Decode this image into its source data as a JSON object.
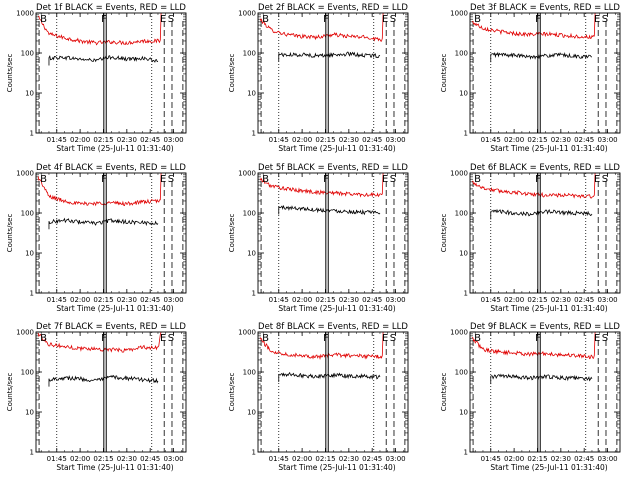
{
  "page": {
    "background": "#ffffff"
  },
  "colors": {
    "axis": "#000000",
    "events": "#000000",
    "lld": "#e00000"
  },
  "chart_data": [
    {
      "type": "line",
      "title": "Det 1f BLACK = Events, RED = LLD",
      "xlabel": "Start Time (25-Jul-11 01:31:40)",
      "ylabel": "Counts/sec",
      "y_scale": "log",
      "ylim": [
        1,
        1000
      ],
      "y_ticks": [
        "1",
        "10",
        "100",
        "1000"
      ],
      "x_ticks": [
        "01:45",
        "02:00",
        "02:15",
        "02:30",
        "02:45",
        "03:00"
      ],
      "x_axis_range": [
        "01:31:40",
        "03:08"
      ],
      "markers": [
        {
          "label": "B",
          "time": "01:33"
        },
        {
          "label": "F",
          "time": "02:16"
        },
        {
          "label": "E",
          "time": "02:54"
        },
        {
          "label": "S",
          "time": "02:59"
        }
      ],
      "series": [
        {
          "color": "red",
          "x": [
            "01:33",
            "01:40",
            "01:50",
            "02:00",
            "02:10",
            "02:20",
            "02:30",
            "02:40",
            "02:50",
            "02:52"
          ],
          "values": [
            800,
            300,
            240,
            200,
            180,
            190,
            180,
            200,
            200,
            1000
          ]
        },
        {
          "color": "black",
          "x": [
            "01:40",
            "01:50",
            "02:00",
            "02:10",
            "02:20",
            "02:30",
            "02:40",
            "02:50"
          ],
          "values": [
            75,
            78,
            70,
            65,
            80,
            70,
            75,
            62
          ]
        }
      ]
    },
    {
      "type": "line",
      "title": "Det 2f BLACK = Events, RED = LLD",
      "xlabel": "Start Time (25-Jul-11 01:31:40)",
      "ylabel": "Counts/sec",
      "y_scale": "log",
      "ylim": [
        1,
        1000
      ],
      "y_ticks": [
        "1",
        "10",
        "100",
        "1000"
      ],
      "x_ticks": [
        "01:45",
        "02:00",
        "02:15",
        "02:30",
        "02:45",
        "03:00"
      ],
      "x_axis_range": [
        "01:31:40",
        "03:08"
      ],
      "markers": [
        {
          "label": "B",
          "time": "01:33"
        },
        {
          "label": "F",
          "time": "02:16"
        },
        {
          "label": "E",
          "time": "02:54"
        },
        {
          "label": "S",
          "time": "02:59"
        }
      ],
      "series": [
        {
          "color": "red",
          "x": [
            "01:33",
            "01:40",
            "01:50",
            "02:00",
            "02:10",
            "02:20",
            "02:30",
            "02:40",
            "02:50",
            "02:52"
          ],
          "values": [
            700,
            380,
            290,
            260,
            250,
            290,
            260,
            250,
            220,
            1000
          ]
        },
        {
          "color": "black",
          "x": [
            "01:45",
            "01:50",
            "02:00",
            "02:10",
            "02:20",
            "02:30",
            "02:40",
            "02:50"
          ],
          "values": [
            95,
            88,
            92,
            85,
            90,
            95,
            88,
            85
          ]
        }
      ]
    },
    {
      "type": "line",
      "title": "Det 3f BLACK = Events, RED = LLD",
      "xlabel": "Start Time (25-Jul-11 01:31:40)",
      "ylabel": "Counts/sec",
      "y_scale": "log",
      "ylim": [
        1,
        1000
      ],
      "y_ticks": [
        "1",
        "10",
        "100",
        "1000"
      ],
      "x_ticks": [
        "01:45",
        "02:00",
        "02:15",
        "02:30",
        "02:45",
        "03:00"
      ],
      "x_axis_range": [
        "01:31:40",
        "03:08"
      ],
      "markers": [
        {
          "label": "B",
          "time": "01:33"
        },
        {
          "label": "F",
          "time": "02:16"
        },
        {
          "label": "E",
          "time": "02:54"
        },
        {
          "label": "S",
          "time": "02:59"
        }
      ],
      "series": [
        {
          "color": "red",
          "x": [
            "01:33",
            "01:40",
            "01:50",
            "02:00",
            "02:10",
            "02:20",
            "02:30",
            "02:40",
            "02:50",
            "02:52"
          ],
          "values": [
            600,
            420,
            350,
            310,
            290,
            300,
            280,
            260,
            250,
            1000
          ]
        },
        {
          "color": "black",
          "x": [
            "01:45",
            "01:50",
            "02:00",
            "02:10",
            "02:20",
            "02:30",
            "02:40",
            "02:50"
          ],
          "values": [
            90,
            92,
            88,
            80,
            85,
            90,
            82,
            80
          ]
        }
      ]
    },
    {
      "type": "line",
      "title": "Det 4f BLACK = Events, RED = LLD",
      "xlabel": "Start Time (25-Jul-11 01:31:40)",
      "ylabel": "Counts/sec",
      "y_scale": "log",
      "ylim": [
        1,
        1000
      ],
      "y_ticks": [
        "1",
        "10",
        "100",
        "1000"
      ],
      "x_ticks": [
        "01:45",
        "02:00",
        "02:15",
        "02:30",
        "02:45",
        "03:00"
      ],
      "x_axis_range": [
        "01:31:40",
        "03:08"
      ],
      "markers": [
        {
          "label": "B",
          "time": "01:33"
        },
        {
          "label": "F",
          "time": "02:16"
        },
        {
          "label": "E",
          "time": "02:54"
        },
        {
          "label": "S",
          "time": "02:59"
        }
      ],
      "series": [
        {
          "color": "red",
          "x": [
            "01:33",
            "01:40",
            "01:50",
            "02:00",
            "02:10",
            "02:20",
            "02:30",
            "02:40",
            "02:50",
            "02:52"
          ],
          "values": [
            800,
            260,
            200,
            170,
            175,
            180,
            170,
            190,
            200,
            1000
          ]
        },
        {
          "color": "black",
          "x": [
            "01:40",
            "01:50",
            "02:00",
            "02:10",
            "02:20",
            "02:30",
            "02:40",
            "02:50"
          ],
          "values": [
            60,
            66,
            60,
            55,
            65,
            60,
            58,
            55
          ]
        }
      ]
    },
    {
      "type": "line",
      "title": "Det 5f BLACK = Events, RED = LLD",
      "xlabel": "Start Time (25-Jul-11 01:31:40)",
      "ylabel": "Counts/sec",
      "y_scale": "log",
      "ylim": [
        1,
        1000
      ],
      "y_ticks": [
        "1",
        "10",
        "100",
        "1000"
      ],
      "x_ticks": [
        "01:45",
        "02:00",
        "02:15",
        "02:30",
        "02:45",
        "03:00"
      ],
      "x_axis_range": [
        "01:31:40",
        "03:08"
      ],
      "markers": [
        {
          "label": "B",
          "time": "01:33"
        },
        {
          "label": "F",
          "time": "02:16"
        },
        {
          "label": "E",
          "time": "02:54"
        },
        {
          "label": "S",
          "time": "02:59"
        }
      ],
      "series": [
        {
          "color": "red",
          "x": [
            "01:33",
            "01:40",
            "01:50",
            "02:00",
            "02:10",
            "02:20",
            "02:30",
            "02:40",
            "02:50",
            "02:52"
          ],
          "values": [
            700,
            480,
            400,
            360,
            330,
            320,
            300,
            290,
            280,
            1000
          ]
        },
        {
          "color": "black",
          "x": [
            "01:45",
            "01:50",
            "02:00",
            "02:10",
            "02:20",
            "02:30",
            "02:40",
            "02:50"
          ],
          "values": [
            140,
            135,
            130,
            120,
            115,
            110,
            105,
            100
          ]
        }
      ]
    },
    {
      "type": "line",
      "title": "Det 6f BLACK = Events, RED = LLD",
      "xlabel": "Start Time (25-Jul-11 01:31:40)",
      "ylabel": "Counts/sec",
      "y_scale": "log",
      "ylim": [
        1,
        1000
      ],
      "y_ticks": [
        "1",
        "10",
        "100",
        "1000"
      ],
      "x_ticks": [
        "01:45",
        "02:00",
        "02:15",
        "02:30",
        "02:45",
        "03:00"
      ],
      "x_axis_range": [
        "01:31:40",
        "03:08"
      ],
      "markers": [
        {
          "label": "B",
          "time": "01:33"
        },
        {
          "label": "F",
          "time": "02:16"
        },
        {
          "label": "E",
          "time": "02:54"
        },
        {
          "label": "S",
          "time": "02:59"
        }
      ],
      "series": [
        {
          "color": "red",
          "x": [
            "01:33",
            "01:40",
            "01:50",
            "02:00",
            "02:10",
            "02:20",
            "02:30",
            "02:40",
            "02:50",
            "02:52"
          ],
          "values": [
            600,
            420,
            360,
            330,
            300,
            280,
            280,
            270,
            260,
            1000
          ]
        },
        {
          "color": "black",
          "x": [
            "01:45",
            "01:50",
            "02:00",
            "02:10",
            "02:20",
            "02:30",
            "02:40",
            "02:50"
          ],
          "values": [
            105,
            110,
            100,
            95,
            110,
            105,
            100,
            95
          ]
        }
      ]
    },
    {
      "type": "line",
      "title": "Det 7f BLACK = Events, RED = LLD",
      "xlabel": "Start Time (25-Jul-11 01:31:40)",
      "ylabel": "Counts/sec",
      "y_scale": "log",
      "ylim": [
        1,
        1000
      ],
      "y_ticks": [
        "1",
        "10",
        "100",
        "1000"
      ],
      "x_ticks": [
        "01:45",
        "02:00",
        "02:15",
        "02:30",
        "02:45",
        "03:00"
      ],
      "x_axis_range": [
        "01:31:40",
        "03:08"
      ],
      "markers": [
        {
          "label": "B",
          "time": "01:33"
        },
        {
          "label": "F",
          "time": "02:16"
        },
        {
          "label": "E",
          "time": "02:54"
        },
        {
          "label": "S",
          "time": "02:59"
        }
      ],
      "series": [
        {
          "color": "red",
          "x": [
            "01:33",
            "01:40",
            "01:50",
            "02:00",
            "02:10",
            "02:20",
            "02:30",
            "02:40",
            "02:50",
            "02:52"
          ],
          "values": [
            900,
            500,
            430,
            390,
            380,
            360,
            350,
            420,
            400,
            1000
          ]
        },
        {
          "color": "black",
          "x": [
            "01:40",
            "01:50",
            "02:00",
            "02:10",
            "02:20",
            "02:30",
            "02:40",
            "02:50"
          ],
          "values": [
            65,
            72,
            68,
            60,
            75,
            70,
            65,
            60
          ]
        }
      ]
    },
    {
      "type": "line",
      "title": "Det 8f BLACK = Events, RED = LLD",
      "xlabel": "Start Time (25-Jul-11 01:31:40)",
      "ylabel": "Counts/sec",
      "y_scale": "log",
      "ylim": [
        1,
        1000
      ],
      "y_ticks": [
        "1",
        "10",
        "100",
        "1000"
      ],
      "x_ticks": [
        "01:45",
        "02:00",
        "02:15",
        "02:30",
        "02:45",
        "03:00"
      ],
      "x_axis_range": [
        "01:31:40",
        "03:08"
      ],
      "markers": [
        {
          "label": "B",
          "time": "01:33"
        },
        {
          "label": "F",
          "time": "02:16"
        },
        {
          "label": "E",
          "time": "02:54"
        },
        {
          "label": "S",
          "time": "02:59"
        }
      ],
      "series": [
        {
          "color": "red",
          "x": [
            "01:33",
            "01:40",
            "01:50",
            "02:00",
            "02:10",
            "02:20",
            "02:30",
            "02:40",
            "02:50",
            "02:52"
          ],
          "values": [
            700,
            330,
            280,
            260,
            240,
            270,
            260,
            250,
            240,
            1000
          ]
        },
        {
          "color": "black",
          "x": [
            "01:45",
            "01:50",
            "02:00",
            "02:10",
            "02:20",
            "02:30",
            "02:40",
            "02:50"
          ],
          "values": [
            85,
            88,
            82,
            78,
            85,
            80,
            78,
            75
          ]
        }
      ]
    },
    {
      "type": "line",
      "title": "Det 9f BLACK = Events, RED = LLD",
      "xlabel": "Start Time (25-Jul-11 01:31:40)",
      "ylabel": "Counts/sec",
      "y_scale": "log",
      "ylim": [
        1,
        1000
      ],
      "y_ticks": [
        "1",
        "10",
        "100",
        "1000"
      ],
      "x_ticks": [
        "01:45",
        "02:00",
        "02:15",
        "02:30",
        "02:45",
        "03:00"
      ],
      "x_axis_range": [
        "01:31:40",
        "03:08"
      ],
      "markers": [
        {
          "label": "B",
          "time": "01:33"
        },
        {
          "label": "F",
          "time": "02:16"
        },
        {
          "label": "E",
          "time": "02:54"
        },
        {
          "label": "S",
          "time": "02:59"
        }
      ],
      "series": [
        {
          "color": "red",
          "x": [
            "01:33",
            "01:40",
            "01:50",
            "02:00",
            "02:10",
            "02:20",
            "02:30",
            "02:40",
            "02:50",
            "02:52"
          ],
          "values": [
            700,
            370,
            320,
            300,
            280,
            290,
            270,
            260,
            240,
            1000
          ]
        },
        {
          "color": "black",
          "x": [
            "01:45",
            "01:50",
            "02:00",
            "02:10",
            "02:20",
            "02:30",
            "02:40",
            "02:50"
          ],
          "values": [
            75,
            80,
            76,
            70,
            78,
            72,
            70,
            68
          ]
        }
      ]
    }
  ]
}
